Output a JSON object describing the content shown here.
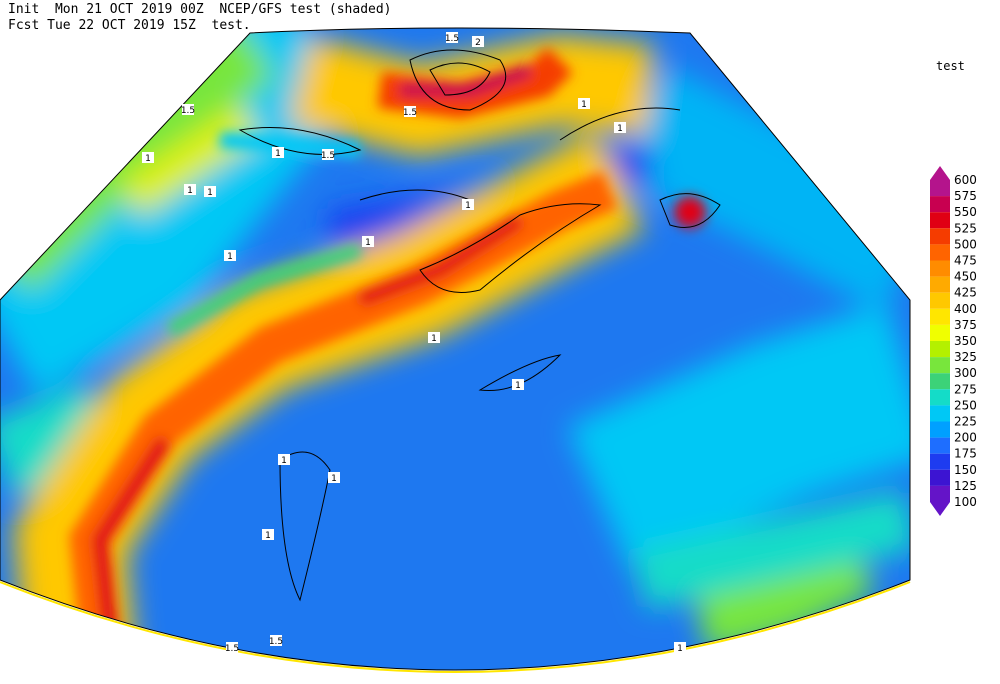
{
  "header": {
    "line1": "Init  Mon 21 OCT 2019 00Z  NCEP/GFS test (shaded)",
    "line2": "Fcst Tue 22 OCT 2019 15Z  test."
  },
  "colorbar": {
    "title": "test",
    "levels": [
      600,
      575,
      550,
      525,
      500,
      475,
      450,
      425,
      400,
      375,
      350,
      325,
      300,
      275,
      250,
      225,
      200,
      175,
      150,
      125,
      100
    ],
    "colors": [
      "#b4148c",
      "#c80050",
      "#e00014",
      "#f53c00",
      "#ff6400",
      "#ff8c00",
      "#ffaa00",
      "#ffc800",
      "#ffe600",
      "#f0ff00",
      "#b4f000",
      "#78e63c",
      "#3cd278",
      "#14dcc8",
      "#00c8f5",
      "#00a0ff",
      "#1e6eff",
      "#1e3cf0",
      "#3c14d2",
      "#6414c8"
    ]
  },
  "contour_labels": [
    "1.5",
    "2",
    "1.5",
    "1.5",
    "1",
    "1.5",
    "1",
    "1",
    "1",
    "1",
    "1",
    "1",
    "1",
    "1",
    "1",
    "1",
    "1",
    "1",
    "1",
    "1.5",
    "1.5",
    "1"
  ]
}
